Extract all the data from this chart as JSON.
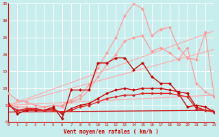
{
  "title": "",
  "xlabel": "Vent moyen/en rafales ( km/h )",
  "xlim": [
    0,
    23
  ],
  "ylim": [
    0,
    35
  ],
  "yticks": [
    0,
    5,
    10,
    15,
    20,
    25,
    30,
    35
  ],
  "xticks": [
    0,
    1,
    2,
    3,
    4,
    5,
    6,
    7,
    8,
    9,
    10,
    11,
    12,
    13,
    14,
    15,
    16,
    17,
    18,
    19,
    20,
    21,
    22,
    23
  ],
  "bg_color": "#c8eded",
  "grid_color": "#aadddd",
  "series": [
    {
      "x": [
        0,
        23
      ],
      "y": [
        5.0,
        27.0
      ],
      "color": "#ffaaaa",
      "marker": null,
      "linewidth": 0.9,
      "linestyle": "-"
    },
    {
      "x": [
        0,
        23
      ],
      "y": [
        5.0,
        21.5
      ],
      "color": "#ffaaaa",
      "marker": null,
      "linewidth": 0.9,
      "linestyle": "-"
    },
    {
      "x": [
        0,
        23
      ],
      "y": [
        5.0,
        8.0
      ],
      "color": "#ffaaaa",
      "marker": null,
      "linewidth": 0.9,
      "linestyle": "-"
    },
    {
      "x": [
        0,
        1,
        2,
        3,
        4,
        5,
        6,
        7,
        8,
        9,
        10,
        11,
        12,
        13,
        14,
        15,
        16,
        17,
        18,
        19,
        20,
        21,
        22,
        23
      ],
      "y": [
        5.0,
        4.5,
        4.5,
        4.0,
        4.5,
        5.0,
        5.0,
        6.5,
        8.0,
        11.0,
        16.0,
        20.5,
        25.0,
        31.5,
        35.0,
        33.5,
        25.5,
        27.5,
        28.0,
        22.0,
        19.0,
        18.5,
        26.5,
        7.5
      ],
      "color": "#ff9999",
      "marker": "D",
      "markersize": 2.5,
      "linewidth": 0.9,
      "linestyle": "-"
    },
    {
      "x": [
        0,
        1,
        2,
        3,
        4,
        5,
        6,
        7,
        8,
        9,
        10,
        11,
        12,
        13,
        14,
        15,
        16,
        17,
        18,
        19,
        20,
        21,
        22,
        23
      ],
      "y": [
        8.5,
        6.5,
        6.0,
        5.0,
        4.5,
        5.0,
        4.5,
        6.0,
        7.0,
        9.5,
        13.5,
        17.0,
        20.0,
        24.0,
        25.0,
        25.5,
        21.0,
        22.0,
        20.5,
        18.5,
        22.0,
        11.5,
        9.0,
        7.5
      ],
      "color": "#ff9999",
      "marker": "D",
      "markersize": 2.5,
      "linewidth": 0.9,
      "linestyle": "-"
    },
    {
      "x": [
        0,
        1,
        2,
        3,
        4,
        5,
        6,
        7,
        8,
        9,
        10,
        11,
        12,
        13,
        14,
        15,
        16,
        17,
        18,
        19,
        20,
        21,
        22,
        23
      ],
      "y": [
        5.5,
        2.5,
        3.5,
        4.0,
        3.5,
        4.5,
        1.0,
        9.5,
        9.5,
        9.5,
        17.5,
        17.5,
        19.0,
        19.0,
        15.5,
        17.5,
        13.5,
        11.5,
        11.5,
        8.5,
        4.5,
        5.0,
        4.5,
        3.0
      ],
      "color": "#cc0000",
      "marker": "D",
      "markersize": 2.5,
      "linewidth": 1.0,
      "linestyle": "-"
    },
    {
      "x": [
        0,
        1,
        2,
        3,
        4,
        5,
        6,
        7,
        8,
        9,
        10,
        11,
        12,
        13,
        14,
        15,
        16,
        17,
        18,
        19,
        20,
        21,
        22,
        23
      ],
      "y": [
        5.0,
        3.5,
        3.5,
        3.5,
        3.5,
        4.0,
        2.5,
        4.0,
        5.0,
        5.5,
        7.0,
        8.5,
        9.5,
        10.0,
        9.5,
        10.0,
        10.0,
        10.0,
        9.5,
        9.0,
        8.5,
        4.5,
        3.5,
        3.0
      ],
      "color": "#cc0000",
      "marker": "D",
      "markersize": 2.5,
      "linewidth": 1.0,
      "linestyle": "-"
    },
    {
      "x": [
        0,
        1,
        2,
        3,
        4,
        5,
        6,
        7,
        8,
        9,
        10,
        11,
        12,
        13,
        14,
        15,
        16,
        17,
        18,
        19,
        20,
        21,
        22,
        23
      ],
      "y": [
        5.0,
        3.5,
        4.0,
        4.0,
        3.5,
        3.5,
        3.0,
        3.5,
        4.5,
        5.0,
        6.0,
        7.0,
        7.5,
        8.0,
        8.0,
        8.5,
        8.5,
        8.5,
        8.5,
        8.0,
        7.5,
        4.0,
        3.5,
        3.0
      ],
      "color": "#dd2222",
      "marker": "D",
      "markersize": 2.5,
      "linewidth": 1.0,
      "linestyle": "-"
    },
    {
      "x": [
        0,
        23
      ],
      "y": [
        3.0,
        3.5
      ],
      "color": "#cc0000",
      "marker": null,
      "linewidth": 0.9,
      "linestyle": "-"
    }
  ]
}
